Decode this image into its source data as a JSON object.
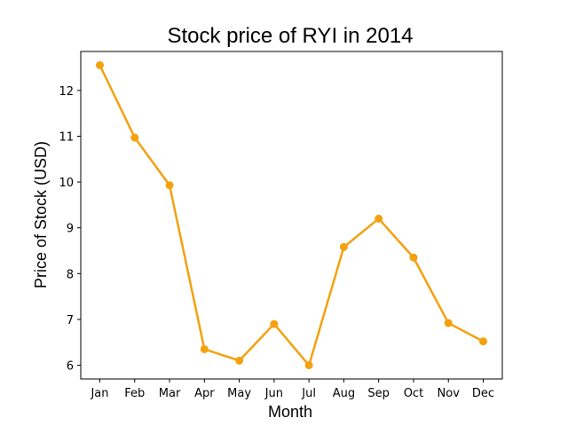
{
  "chart_data": {
    "type": "line",
    "title": "Stock price of RYI in 2014",
    "xlabel": "Month",
    "ylabel": "Price of Stock (USD)",
    "categories": [
      "Jan",
      "Feb",
      "Mar",
      "Apr",
      "May",
      "Jun",
      "Jul",
      "Aug",
      "Sep",
      "Oct",
      "Nov",
      "Dec"
    ],
    "values": [
      12.55,
      10.97,
      9.93,
      6.35,
      6.1,
      6.9,
      6.0,
      8.58,
      9.2,
      8.35,
      6.92,
      6.52
    ],
    "yticks": [
      6,
      7,
      8,
      9,
      10,
      11,
      12
    ],
    "ylim": [
      5.7,
      12.85
    ],
    "grid": false,
    "color": "#f4a10f"
  }
}
